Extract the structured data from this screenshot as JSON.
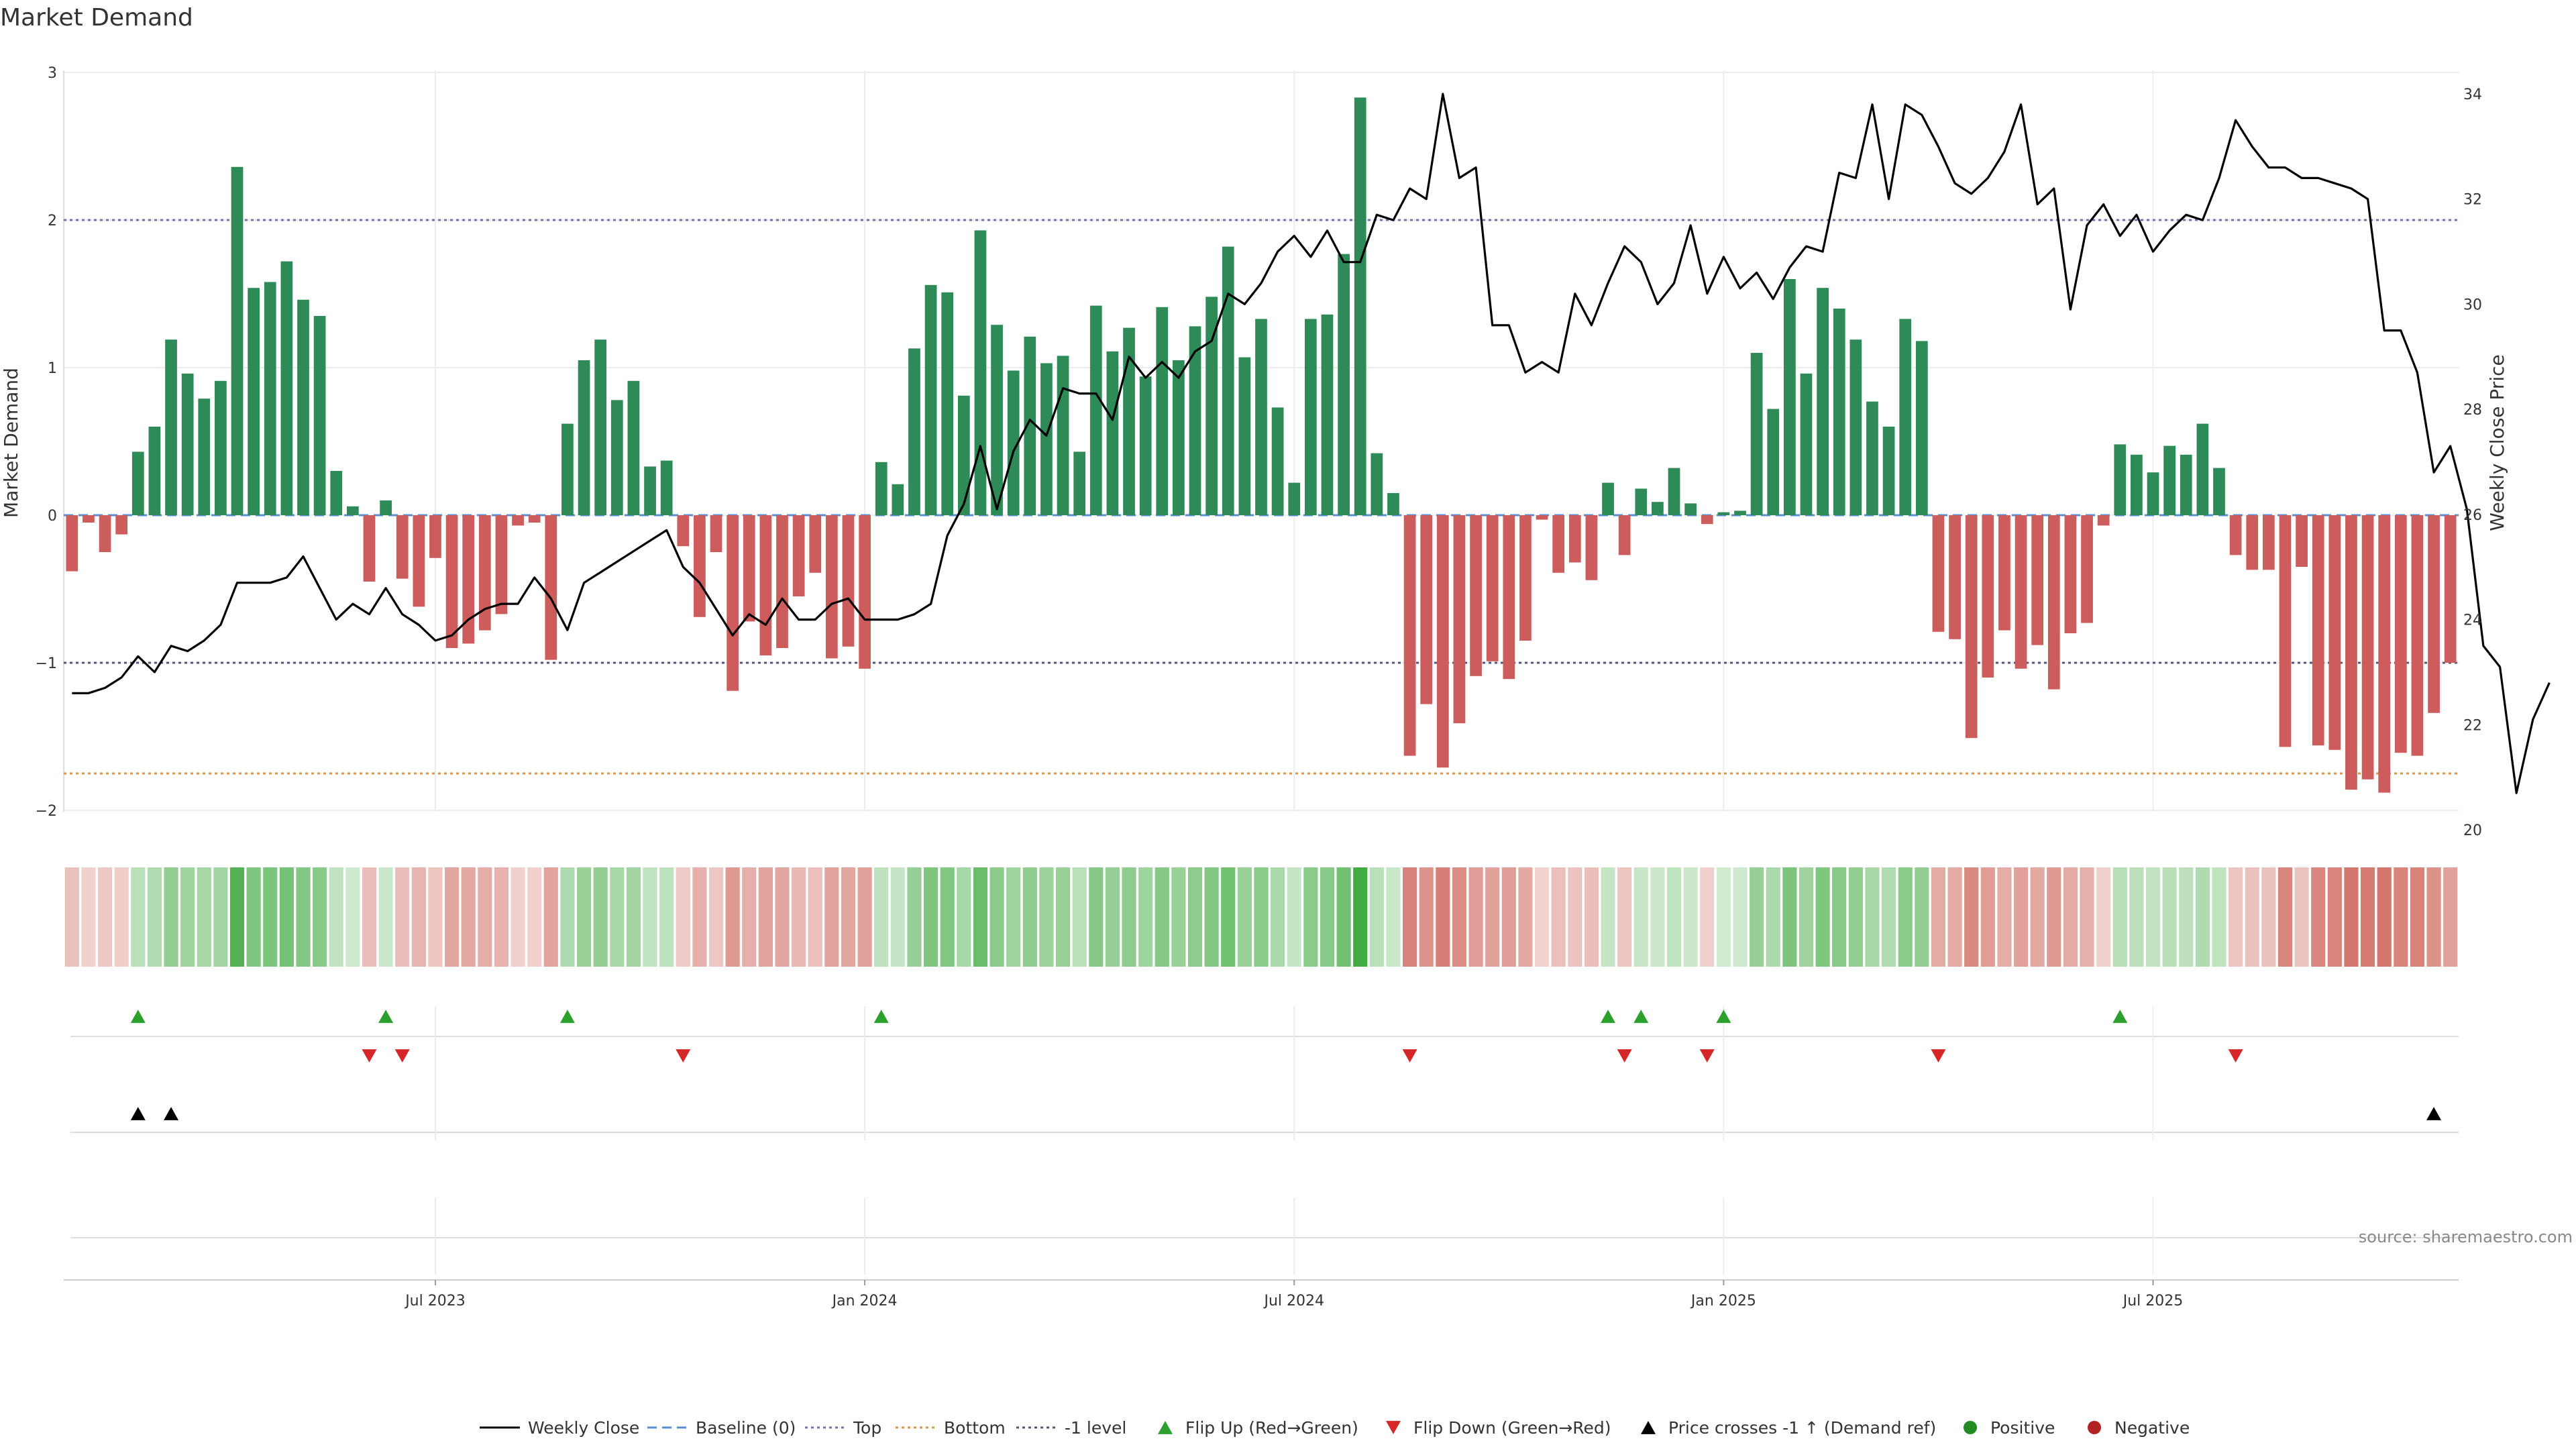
{
  "chart_data": {
    "type": "bar",
    "title": "Market Demand",
    "ylabel_left": "Market Demand",
    "ylabel_right": "Weekly Close Price",
    "ylim_left": [
      -2,
      3
    ],
    "ylim_right": [
      20,
      34
    ],
    "yticks_left": [
      "3",
      "2",
      "1",
      "0",
      "−1",
      "−2"
    ],
    "yticks_right": [
      "34",
      "32",
      "30",
      "28",
      "26",
      "24",
      "22",
      "20"
    ],
    "levels": {
      "top": 2.0,
      "bottom": -1.75,
      "minus_one": -1.0,
      "baseline": 0
    },
    "x_tick_labels": [
      "Jul 2023",
      "Jan 2024",
      "Jul 2024",
      "Jan 2025",
      "Jul 2025"
    ],
    "x_tick_weeks": [
      22,
      48,
      74,
      100,
      126
    ],
    "series": [
      {
        "name": "Market Demand",
        "values": [
          -0.38,
          -0.05,
          -0.25,
          -0.13,
          0.43,
          0.6,
          1.19,
          0.96,
          0.79,
          0.91,
          2.36,
          1.54,
          1.58,
          1.72,
          1.46,
          1.35,
          0.3,
          0.06,
          -0.45,
          0.1,
          -0.43,
          -0.62,
          -0.29,
          -0.9,
          -0.87,
          -0.78,
          -0.67,
          -0.07,
          -0.05,
          -0.98,
          0.62,
          1.05,
          1.19,
          0.78,
          0.91,
          0.33,
          0.37,
          -0.21,
          -0.69,
          -0.25,
          -1.19,
          -0.72,
          -0.95,
          -0.9,
          -0.55,
          -0.39,
          -0.97,
          -0.89,
          -1.04,
          0.36,
          0.21,
          1.13,
          1.56,
          1.51,
          0.81,
          1.93,
          1.29,
          0.98,
          1.21,
          1.03,
          1.08,
          0.43,
          1.42,
          1.11,
          1.27,
          0.94,
          1.41,
          1.05,
          1.28,
          1.48,
          1.82,
          1.07,
          1.33,
          0.73,
          0.22,
          1.33,
          1.36,
          1.77,
          2.83,
          0.42,
          0.15,
          -1.63,
          -1.28,
          -1.71,
          -1.41,
          -1.09,
          -0.99,
          -1.11,
          -0.85,
          -0.03,
          -0.39,
          -0.32,
          -0.44,
          0.22,
          -0.27,
          0.18,
          0.09,
          0.32,
          0.08,
          -0.06,
          0.02,
          0.03,
          1.1,
          0.72,
          1.6,
          0.96,
          1.54,
          1.4,
          1.19,
          0.77,
          0.6,
          1.33,
          1.18,
          -0.79,
          -0.84,
          -1.51,
          -1.1,
          -0.78,
          -1.04,
          -0.88,
          -1.18,
          -0.8,
          -0.73,
          -0.07,
          0.48,
          0.41,
          0.29,
          0.47,
          0.41,
          0.62,
          0.32,
          -0.27,
          -0.37,
          -0.37,
          -1.57,
          -0.35,
          -1.56,
          -1.59,
          -1.86,
          -1.79,
          -1.88,
          -1.61,
          -1.63,
          -1.34,
          -1.0
        ]
      },
      {
        "name": "Weekly Close",
        "values": [
          22.6,
          22.6,
          22.7,
          22.9,
          23.3,
          23.0,
          23.5,
          23.4,
          23.6,
          23.9,
          24.7,
          24.7,
          24.7,
          24.8,
          25.2,
          24.6,
          24.0,
          24.3,
          24.1,
          24.6,
          24.1,
          23.9,
          23.6,
          23.7,
          24.0,
          24.2,
          24.3,
          24.3,
          24.8,
          24.4,
          23.8,
          24.7,
          24.9,
          25.1,
          25.3,
          25.5,
          25.7,
          25.0,
          24.7,
          24.2,
          23.7,
          24.1,
          23.9,
          24.4,
          24.0,
          24.0,
          24.3,
          24.4,
          24.0,
          24.0,
          24.0,
          24.1,
          24.3,
          25.6,
          26.2,
          27.3,
          26.1,
          27.2,
          27.8,
          27.5,
          28.4,
          28.3,
          28.3,
          27.8,
          29.0,
          28.6,
          28.9,
          28.6,
          29.1,
          29.3,
          30.2,
          30.0,
          30.4,
          31.0,
          31.3,
          30.9,
          31.4,
          30.8,
          30.8,
          31.7,
          31.6,
          32.2,
          32.0,
          34.0,
          32.4,
          32.6,
          29.6,
          29.6,
          28.7,
          28.9,
          28.7,
          30.2,
          29.6,
          30.4,
          31.1,
          30.8,
          30.0,
          30.4,
          31.5,
          30.2,
          30.9,
          30.3,
          30.6,
          30.1,
          30.7,
          31.1,
          31.0,
          32.5,
          32.4,
          33.8,
          32.0,
          33.8,
          33.6,
          33.0,
          32.3,
          32.1,
          32.4,
          32.9,
          33.8,
          31.9,
          32.2,
          29.9,
          31.5,
          31.9,
          31.3,
          31.7,
          31.0,
          31.4,
          31.7,
          31.6,
          32.4,
          33.5,
          33.0,
          32.6,
          32.6,
          32.4,
          32.4,
          32.3,
          32.2,
          32.0,
          29.5,
          29.5,
          28.7,
          26.8,
          27.3,
          26.1,
          23.5,
          23.1,
          20.7,
          22.1,
          22.8
        ]
      }
    ],
    "state_strip": "Positive / Negative shading",
    "flip_up_weeks": [
      4,
      19,
      30,
      49,
      93,
      95,
      100,
      124
    ],
    "flip_down_weeks": [
      18,
      20,
      37,
      81,
      94,
      99,
      113,
      131
    ],
    "price_cross_weeks": [
      4,
      6,
      143
    ],
    "legend": [
      "Weekly Close",
      "Baseline (0)",
      "Top",
      "Bottom",
      "-1 level",
      "Flip Up (Red→Green)",
      "Flip Down (Green→Red)",
      "Price crosses -1 ↑ (Demand ref)",
      "Positive",
      "Negative"
    ],
    "source": "source: sharemaestro.com"
  },
  "colors": {
    "pos_bar": "#2e8b57",
    "neg_bar": "#cd5c5c",
    "price_line": "#000000",
    "top_line": "#7b6fb0",
    "bottom_line": "#e0954a",
    "minus_one_line": "#555577",
    "baseline": "#5b8fd4",
    "flip_up": "#2ca02c",
    "flip_down": "#d62728",
    "positive": "#228b22",
    "negative": "#b22222"
  }
}
